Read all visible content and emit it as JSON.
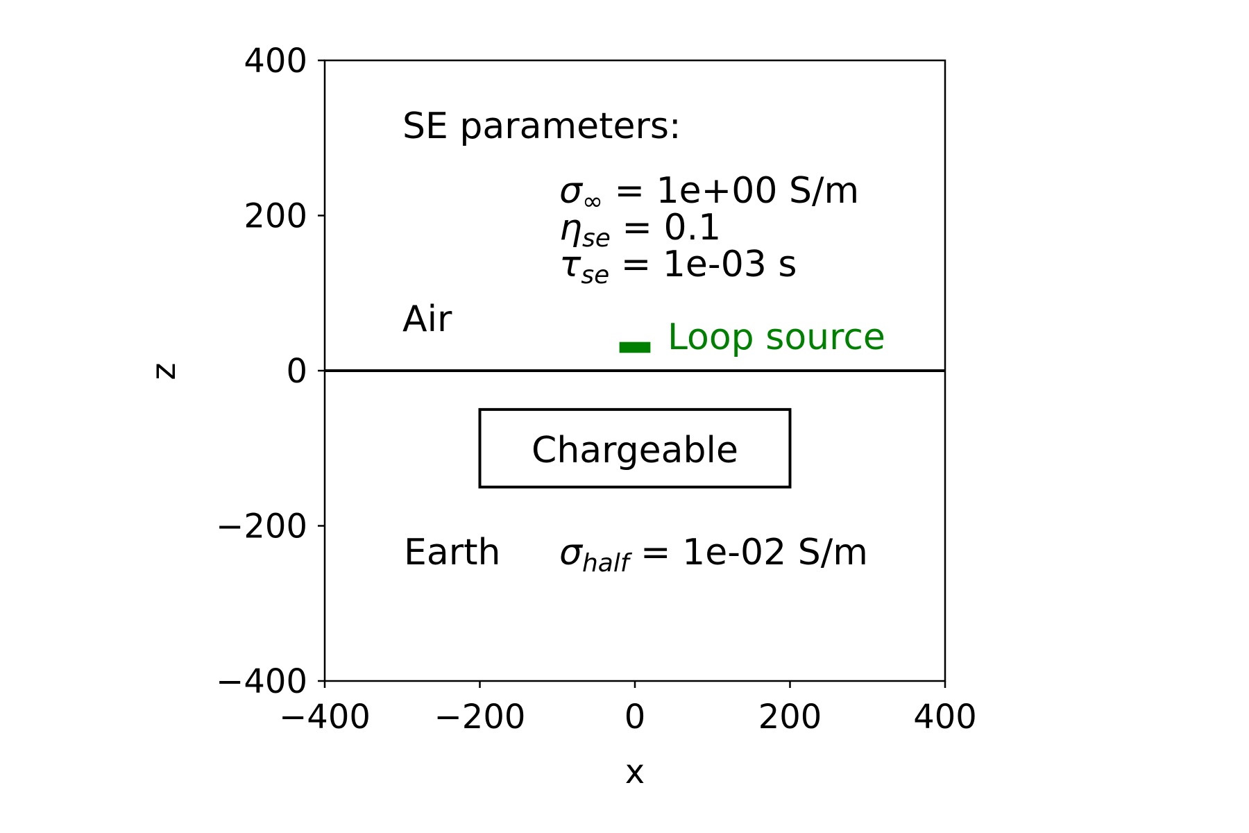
{
  "chart_data": {
    "type": "scatter",
    "xlabel": "x",
    "ylabel": "z",
    "xlim": [
      -400,
      400
    ],
    "ylim": [
      -400,
      400
    ],
    "xticks": [
      -400,
      -200,
      0,
      200,
      400
    ],
    "yticks": [
      -400,
      -200,
      0,
      200,
      400
    ],
    "xtick_labels": [
      "−400",
      "−200",
      "0",
      "200",
      "400"
    ],
    "ytick_labels": [
      "−400",
      "−200",
      "0",
      "200",
      "400"
    ],
    "grid": false,
    "surface_line": {
      "z": 0,
      "color": "#000000"
    },
    "chargeable_body": {
      "x_range": [
        -200,
        200
      ],
      "z_range": [
        -150,
        -50
      ],
      "label": "Chargeable"
    },
    "loop_source": {
      "x_range": [
        -20,
        20
      ],
      "z_range": [
        23,
        37
      ],
      "color": "#008000",
      "label": "Loop source"
    },
    "annotations": {
      "se_title": "SE parameters:",
      "air": "Air",
      "earth": "Earth",
      "sigma_inf": {
        "symbol": "σ",
        "sub": "∞",
        "rest": " = 1e+00 S/m"
      },
      "eta_se": {
        "symbol": "η",
        "sub": "se",
        "rest": " = 0.1"
      },
      "tau_se": {
        "symbol": "τ",
        "sub": "se",
        "rest": " = 1e-03 s"
      },
      "sigma_half": {
        "symbol": "σ",
        "sub": "half",
        "rest": " = 1e-02 S/m"
      }
    }
  }
}
